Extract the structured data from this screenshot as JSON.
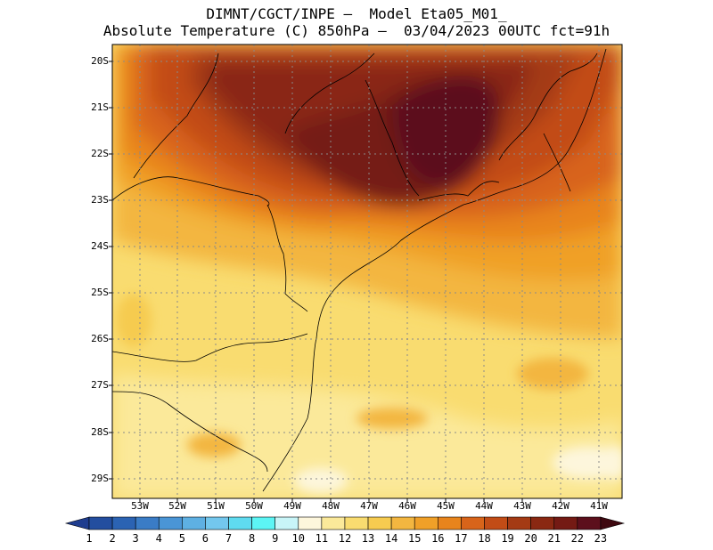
{
  "title": {
    "line1": "DIMNT/CGCT/INPE –  Model Eta05_M01_",
    "line2": "Absolute Temperature (C) 850hPa –  03/04/2023 00UTC fct=91h"
  },
  "map": {
    "lat_labels": [
      "20S",
      "21S",
      "22S",
      "23S",
      "24S",
      "25S",
      "26S",
      "27S",
      "28S",
      "29S"
    ],
    "lon_labels": [
      "53W",
      "52W",
      "51W",
      "50W",
      "49W",
      "48W",
      "47W",
      "46W",
      "45W",
      "44W",
      "43W",
      "42W",
      "41W"
    ],
    "gridlines": "dotted-gray"
  },
  "colorbar": {
    "labels": [
      "1",
      "2",
      "3",
      "4",
      "5",
      "6",
      "7",
      "8",
      "9",
      "10",
      "11",
      "12",
      "13",
      "14",
      "15",
      "16",
      "17",
      "18",
      "19",
      "20",
      "21",
      "22",
      "23"
    ],
    "colors": [
      "#1f3d8f",
      "#234e9f",
      "#2b63b3",
      "#3a7cc6",
      "#4a95d6",
      "#5eb0e3",
      "#73c7ee",
      "#5fdbf0",
      "#5cf5f5",
      "#c8f5f8",
      "#fdf6dc",
      "#fbe99a",
      "#f9dc70",
      "#f6cb50",
      "#f3b640",
      "#f0a028",
      "#e8841c",
      "#d8641a",
      "#c24c16",
      "#a43a14",
      "#8a2812",
      "#741a14",
      "#5c0f1c",
      "#3e0810"
    ]
  }
}
